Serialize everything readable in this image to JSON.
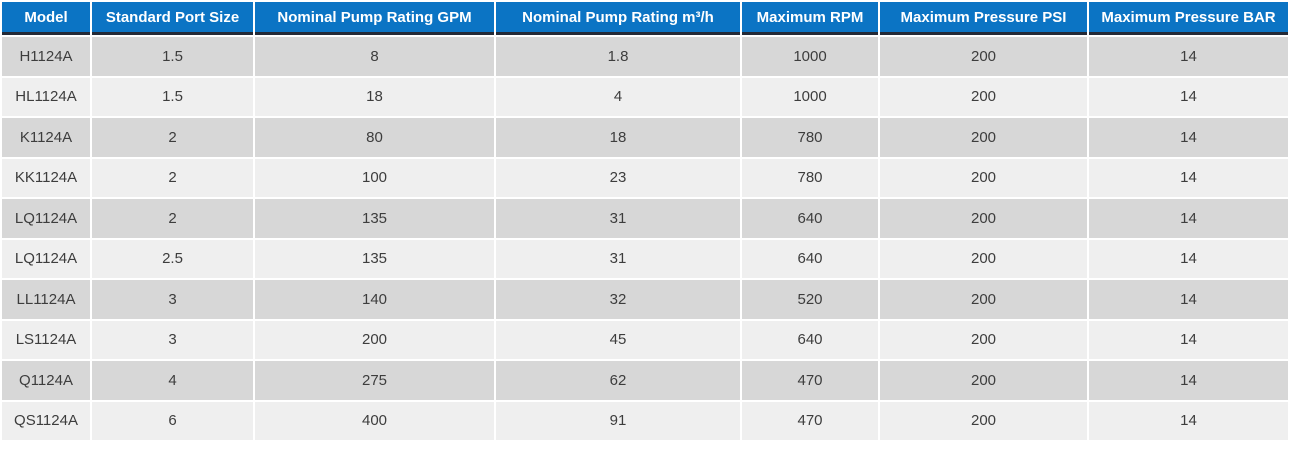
{
  "colors": {
    "header_bg": "#0b74c4",
    "header_text": "#ffffff",
    "header_border": "#232936",
    "row_odd_bg": "#d7d7d7",
    "row_even_bg": "#efefef",
    "cell_text": "#3d3d3d",
    "grid_gap": "#ffffff"
  },
  "table": {
    "columns": [
      "Model",
      "Standard Port Size",
      "Nominal Pump Rating GPM",
      "Nominal Pump Rating m³/h",
      "Maximum RPM",
      "Maximum Pressure PSI",
      "Maximum Pressure BAR"
    ],
    "rows": [
      [
        "H1124A",
        "1.5",
        "8",
        "1.8",
        "1000",
        "200",
        "14"
      ],
      [
        "HL1124A",
        "1.5",
        "18",
        "4",
        "1000",
        "200",
        "14"
      ],
      [
        "K1124A",
        "2",
        "80",
        "18",
        "780",
        "200",
        "14"
      ],
      [
        "KK1124A",
        "2",
        "100",
        "23",
        "780",
        "200",
        "14"
      ],
      [
        "LQ1124A",
        "2",
        "135",
        "31",
        "640",
        "200",
        "14"
      ],
      [
        "LQ1124A",
        "2.5",
        "135",
        "31",
        "640",
        "200",
        "14"
      ],
      [
        "LL1124A",
        "3",
        "140",
        "32",
        "520",
        "200",
        "14"
      ],
      [
        "LS1124A",
        "3",
        "200",
        "45",
        "640",
        "200",
        "14"
      ],
      [
        "Q1124A",
        "4",
        "275",
        "62",
        "470",
        "200",
        "14"
      ],
      [
        "QS1124A",
        "6",
        "400",
        "91",
        "470",
        "200",
        "14"
      ]
    ]
  }
}
